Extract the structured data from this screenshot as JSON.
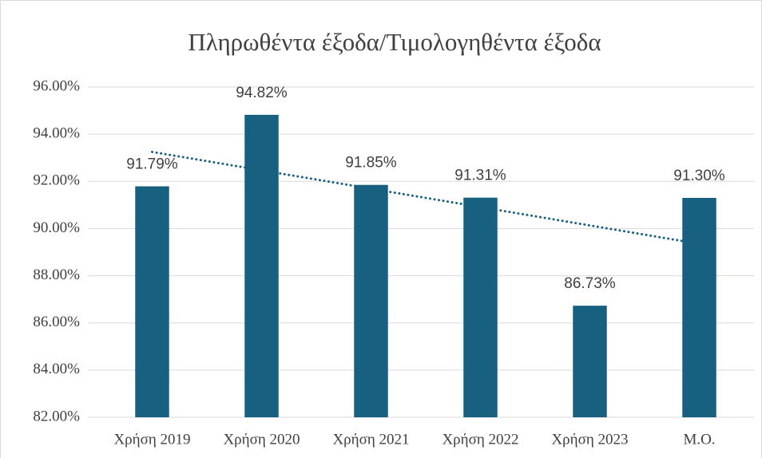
{
  "chart_data": {
    "type": "bar",
    "title": "Πληρωθέντα έξοδα/Τιμολογηθέντα έξοδα",
    "categories": [
      "Χρήση 2019",
      "Χρήση 2020",
      "Χρήση 2021",
      "Χρήση 2022",
      "Χρήση 2023",
      "Μ.Ο."
    ],
    "values": [
      91.79,
      94.82,
      91.85,
      91.31,
      86.73,
      91.3
    ],
    "value_labels": [
      "91.79%",
      "94.82%",
      "91.85%",
      "91.31%",
      "86.73%",
      "91.30%"
    ],
    "color": "#17607f",
    "ylim": [
      82,
      96
    ],
    "yticks": [
      {
        "value": 82,
        "label": "82.00%"
      },
      {
        "value": 84,
        "label": "84.00%"
      },
      {
        "value": 86,
        "label": "86.00%"
      },
      {
        "value": 88,
        "label": "88.00%"
      },
      {
        "value": 90,
        "label": "90.00%"
      },
      {
        "value": 92,
        "label": "92.00%"
      },
      {
        "value": 94,
        "label": "94.00%"
      },
      {
        "value": 96,
        "label": "96.00%"
      }
    ],
    "grid": true,
    "trendline": "linear",
    "trendline_color": "#17607f"
  }
}
